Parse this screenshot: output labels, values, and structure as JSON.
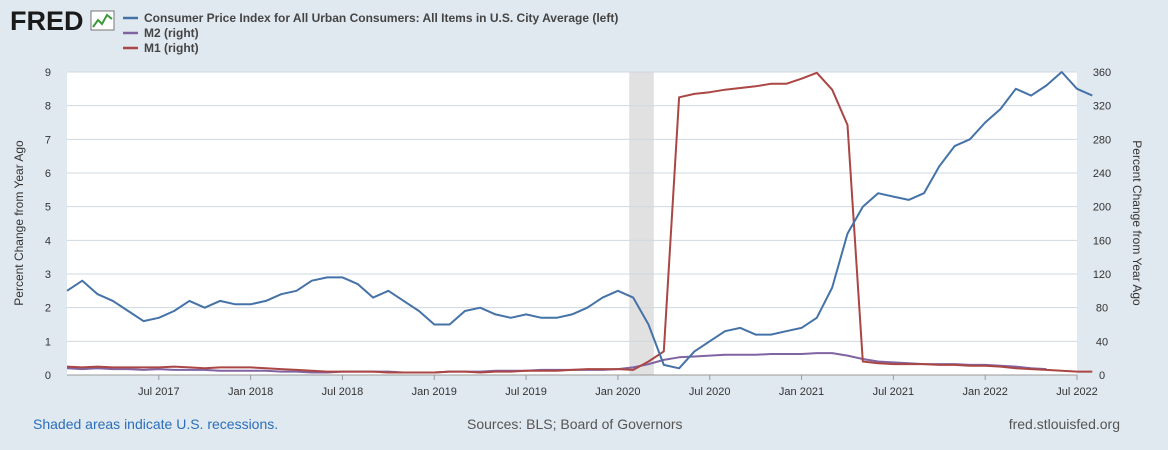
{
  "branding": {
    "logo": "FRED"
  },
  "chart_data": {
    "type": "line",
    "legend": [
      {
        "label": "Consumer Price Index for All Urban Consumers: All Items in U.S. City Average (left)",
        "color": "#4572a7"
      },
      {
        "label": "M2 (right)",
        "color": "#8064a2"
      },
      {
        "label": "M1 (right)",
        "color": "#aa4643"
      }
    ],
    "left_axis": {
      "title": "Percent Change from Year Ago",
      "range": [
        0,
        9
      ],
      "ticks": [
        "0",
        "1",
        "2",
        "3",
        "4",
        "5",
        "6",
        "7",
        "8",
        "9"
      ]
    },
    "right_axis": {
      "title": "Percent Change from Year Ago",
      "range": [
        0,
        360
      ],
      "ticks": [
        "0",
        "40",
        "80",
        "120",
        "160",
        "200",
        "240",
        "280",
        "320",
        "360"
      ]
    },
    "x_axis": {
      "start": "2017-01",
      "end": "2022-07",
      "ticks": [
        {
          "label": "Jul 2017",
          "index": 6
        },
        {
          "label": "Jan 2018",
          "index": 12
        },
        {
          "label": "Jul 2018",
          "index": 18
        },
        {
          "label": "Jan 2019",
          "index": 24
        },
        {
          "label": "Jul 2019",
          "index": 30
        },
        {
          "label": "Jan 2020",
          "index": 36
        },
        {
          "label": "Jul 2020",
          "index": 42
        },
        {
          "label": "Jan 2021",
          "index": 48
        },
        {
          "label": "Jul 2021",
          "index": 54
        },
        {
          "label": "Jan 2022",
          "index": 60
        },
        {
          "label": "Jul 2022",
          "index": 66
        }
      ]
    },
    "recession": {
      "start_index": 37,
      "end_index": 39
    },
    "series": [
      {
        "name": "CPI",
        "axis": "left",
        "color": "#4572a7",
        "start_index": 0,
        "values": [
          2.5,
          2.8,
          2.4,
          2.2,
          1.9,
          1.6,
          1.7,
          1.9,
          2.2,
          2.0,
          2.2,
          2.1,
          2.1,
          2.2,
          2.4,
          2.5,
          2.8,
          2.9,
          2.9,
          2.7,
          2.3,
          2.5,
          2.2,
          1.9,
          1.5,
          1.5,
          1.9,
          2.0,
          1.8,
          1.7,
          1.8,
          1.7,
          1.7,
          1.8,
          2.0,
          2.3,
          2.5,
          2.3,
          1.5,
          0.3,
          0.2,
          0.7,
          1.0,
          1.3,
          1.4,
          1.2,
          1.2,
          1.3,
          1.4,
          1.7,
          2.6,
          4.2,
          5.0,
          5.4,
          5.3,
          5.2,
          5.4,
          6.2,
          6.8,
          7.0,
          7.5,
          7.9,
          8.5,
          8.3,
          8.6,
          9.0,
          8.5,
          8.3
        ]
      },
      {
        "name": "M2",
        "axis": "right",
        "color": "#8064a2",
        "start_index": 0,
        "values": [
          8,
          7,
          8,
          7,
          7,
          6,
          7,
          6,
          6,
          6,
          5,
          5,
          5,
          5,
          4,
          4,
          3,
          3,
          4,
          4,
          4,
          4,
          3,
          3,
          3,
          4,
          4,
          4,
          5,
          5,
          5,
          6,
          6,
          6,
          6,
          6,
          7,
          9,
          13,
          18,
          21,
          22,
          23,
          24,
          24,
          24,
          25,
          25,
          25,
          26,
          26,
          23,
          19,
          16,
          15,
          14,
          13,
          13,
          13,
          12,
          12,
          11,
          10,
          8,
          7
        ]
      },
      {
        "name": "M1",
        "axis": "right",
        "color": "#aa4643",
        "start_index": 0,
        "values": [
          10,
          9,
          10,
          9,
          9,
          9,
          9,
          10,
          9,
          8,
          9,
          9,
          9,
          8,
          7,
          6,
          5,
          4,
          4,
          4,
          4,
          3,
          3,
          3,
          3,
          4,
          4,
          3,
          4,
          4,
          5,
          5,
          5,
          6,
          7,
          7,
          7,
          6,
          16,
          28,
          330,
          334,
          336,
          339,
          341,
          343,
          346,
          346,
          352,
          359,
          339,
          297,
          16,
          14,
          13,
          13,
          13,
          12,
          12,
          11,
          11,
          10,
          8,
          7,
          6,
          5,
          4,
          4
        ]
      }
    ]
  },
  "footer": {
    "left": "Shaded areas indicate U.S. recessions.",
    "middle": "Sources: BLS; Board of Governors",
    "right": "fred.stlouisfed.org"
  }
}
